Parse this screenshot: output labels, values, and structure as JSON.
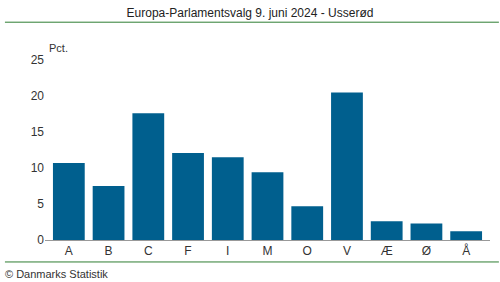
{
  "chart_data": {
    "type": "bar",
    "title": "Europa-Parlamentsvalg 9. juni 2024 - Usserød",
    "y_label": "Pct.",
    "source": "© Danmarks Statistik",
    "categories": [
      "A",
      "B",
      "C",
      "F",
      "I",
      "M",
      "O",
      "V",
      "Æ",
      "Ø",
      "Å"
    ],
    "values": [
      10.7,
      7.5,
      17.6,
      12.1,
      11.5,
      9.4,
      4.7,
      20.5,
      2.6,
      2.3,
      1.2
    ],
    "color": "#005f8e",
    "ylim": [
      0,
      25
    ],
    "yticks": [
      0,
      5,
      10,
      15,
      20,
      25
    ],
    "grid": false
  }
}
